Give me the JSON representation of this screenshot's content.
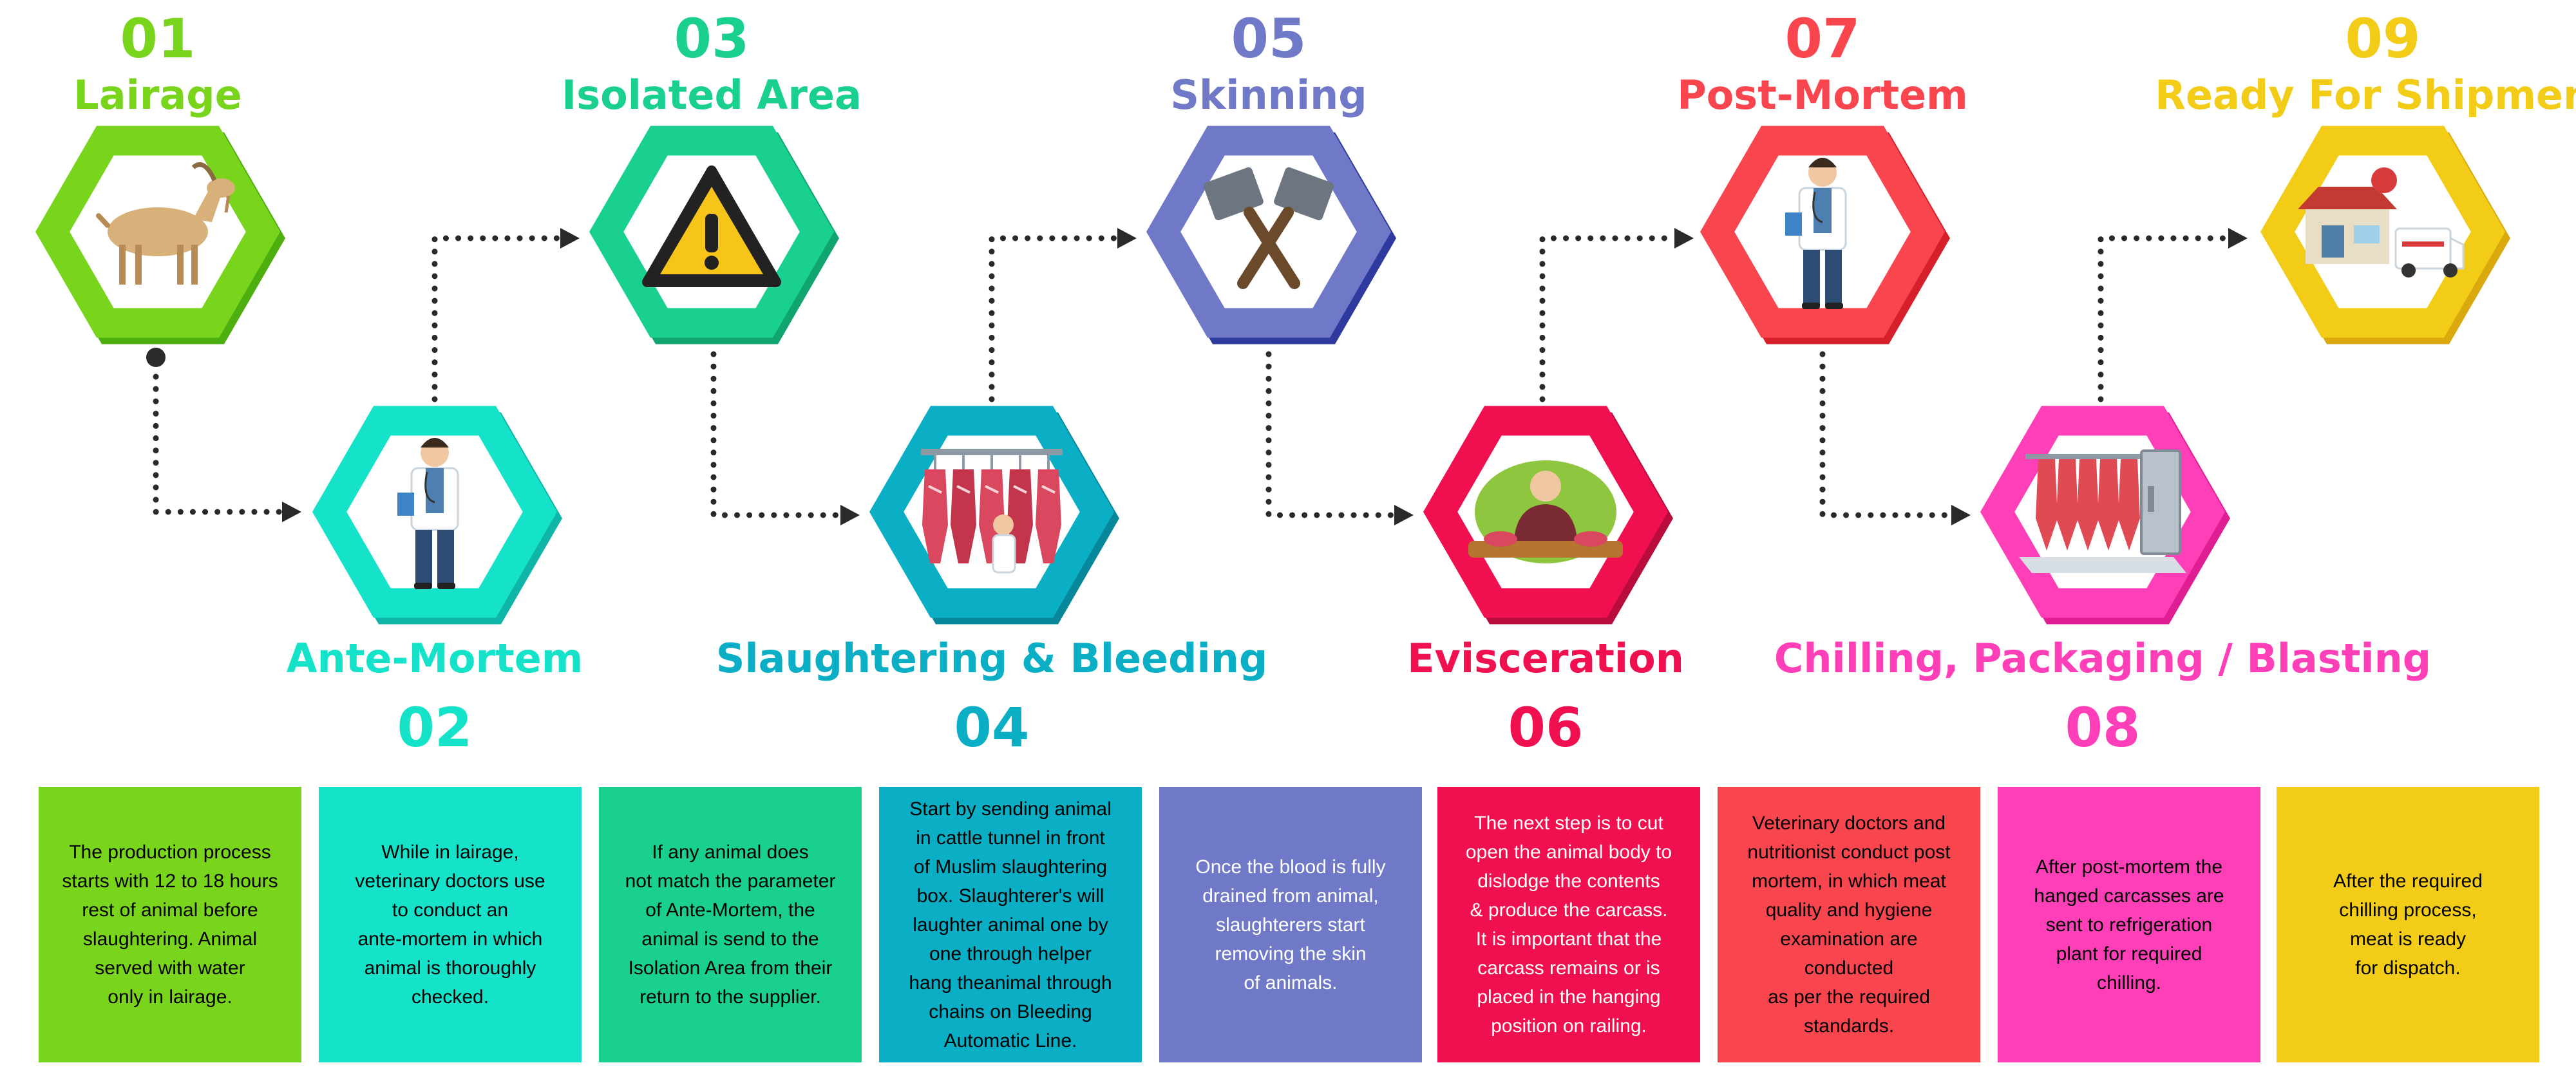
{
  "steps": [
    {
      "number": "01",
      "title": "Lairage",
      "color": "#78D51C",
      "dark": "#4DAE10",
      "icon": "goat-icon",
      "text_color": "#000000",
      "description": "The production process\nstarts with 12 to 18 hours\nrest of animal before\nslaughtering. Animal\nserved with water\nonly in lairage."
    },
    {
      "number": "02",
      "title": "Ante-Mortem",
      "color": "#14E2C9",
      "dark": "#0FB5A6",
      "icon": "veterinarian-icon",
      "text_color": "#000000",
      "description": "While in lairage,\nveterinary doctors use\nto conduct an\nante-mortem in which\nanimal is thoroughly\nchecked."
    },
    {
      "number": "03",
      "title": "Isolated Area",
      "color": "#19D08F",
      "dark": "#10A46E",
      "icon": "warning-icon",
      "text_color": "#000000",
      "description": "If any animal does\nnot match the parameter\nof Ante-Mortem, the\nanimal is send to the\nIsolation Area from their\nreturn to the supplier."
    },
    {
      "number": "04",
      "title": "Slaughtering & Bleeding",
      "color": "#0AAFC5",
      "dark": "#07879A",
      "icon": "hanging-meat-icon",
      "text_color": "#000000",
      "description": "Start by sending animal\nin cattle tunnel in front\nof Muslim slaughtering\nbox. Slaughterer's will\nlaughter animal one by\none through helper\nhang theanimal through\nchains on Bleeding\nAutomatic Line."
    },
    {
      "number": "05",
      "title": "Skinning",
      "color": "#6F79C7",
      "dark": "#2E3A9E",
      "icon": "cleavers-icon",
      "text_color": "#ffffff",
      "description": "Once the blood is fully\ndrained from animal,\nslaughterers start\nremoving the skin\nof animals."
    },
    {
      "number": "06",
      "title": "Evisceration",
      "color": "#F0104F",
      "dark": "#B80C3C",
      "icon": "butcher-icon",
      "text_color": "#ffffff",
      "description": "The next step is to cut\nopen the animal body to\ndislodge the contents\n& produce the carcass.\nIt is important that the\ncarcass remains or is\nplaced in the hanging\nposition on railing."
    },
    {
      "number": "07",
      "title": "Post-Mortem",
      "color": "#F9464E",
      "dark": "#D61F2A",
      "icon": "doctor-icon",
      "text_color": "#000000",
      "description": "Veterinary doctors and\nnutritionist conduct post\nmortem, in which meat\nquality and hygiene\nexamination are conducted\nas per the required\nstandards."
    },
    {
      "number": "08",
      "title": "Chilling, Packaging / Blasting",
      "color": "#FF3FB8",
      "dark": "#E01E94",
      "icon": "cold-storage-icon",
      "text_color": "#000000",
      "description": "After post-mortem the\nhanged carcasses are\nsent to refrigeration\nplant for required\nchilling."
    },
    {
      "number": "09",
      "title": "Ready For Shipment",
      "color": "#F2CC17",
      "dark": "#D9A90D",
      "icon": "delivery-truck-icon",
      "text_color": "#000000",
      "description": "After the required\nchilling process,\nmeat is ready\nfor dispatch."
    }
  ]
}
